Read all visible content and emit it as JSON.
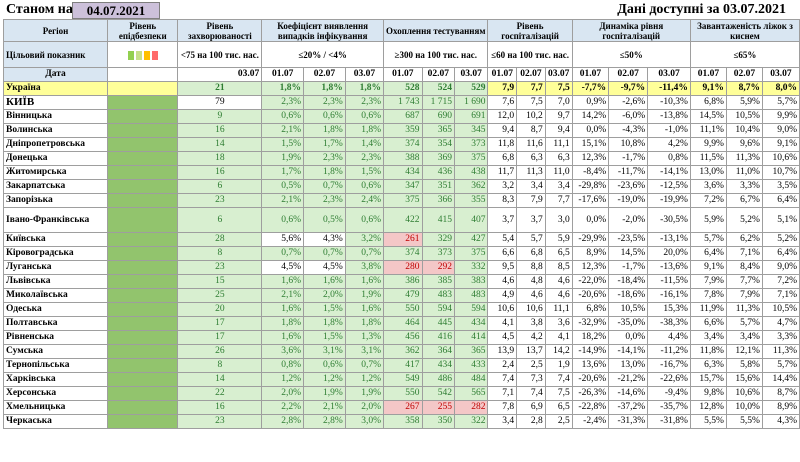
{
  "header": {
    "as_of_label": "Станом на",
    "as_of_date": "04.07.2021",
    "available_label": "Дані доступні за 03.07.2021"
  },
  "columns": {
    "region": "Регіон",
    "epid_level": "Рівень епідбезпеки",
    "incidence": "Рівень захворюваності",
    "detection": "Коефіцієнт виявлення випадків інфікування",
    "testing": "Охоплення тестуванням",
    "hosp_level": "Рівень госпіталізацій",
    "hosp_dynamics": "Динаміка рівня госпіталізацій",
    "oxygen_beds": "Завантаженість ліжок з киснем"
  },
  "targets": {
    "label": "Цільовий показник",
    "incidence": "<75 на 100 тис. нас.",
    "detection": "≤20% / <4%",
    "testing": "≥300 на 100 тис. нас.",
    "hosp_level": "≤60 на 100 тис. нас.",
    "hosp_dynamics": "≤50%",
    "oxygen_beds": "≤65%"
  },
  "level_swatches": [
    "#92d050",
    "#c6e08a",
    "#ffc000",
    "#ff6b6b"
  ],
  "dates": {
    "label": "Дата",
    "incidence": "03.07",
    "d1": "01.07",
    "d2": "02.07",
    "d3": "03.07"
  },
  "rows": [
    {
      "name": "Україна",
      "inc": "21",
      "det": [
        "1,8%",
        "1,8%",
        "1,8%"
      ],
      "tst": [
        "528",
        "524",
        "529"
      ],
      "hl": [
        "7,9",
        "7,7",
        "7,5"
      ],
      "hd": [
        "-7,7%",
        "-9,7%",
        "-11,4%"
      ],
      "ox": [
        "9,1%",
        "8,7%",
        "8,0%"
      ],
      "tc": [
        "g",
        "g",
        "g"
      ],
      "dc": [
        "g",
        "g",
        "g"
      ]
    },
    {
      "name": "КИЇВ",
      "inc": "79",
      "det": [
        "2,3%",
        "2,3%",
        "2,3%"
      ],
      "tst": [
        "1 743",
        "1 715",
        "1 690"
      ],
      "hl": [
        "7,6",
        "7,5",
        "7,0"
      ],
      "hd": [
        "0,9%",
        "-2,6%",
        "-10,3%"
      ],
      "ox": [
        "6,8%",
        "5,9%",
        "5,7%"
      ],
      "tc": [
        "g",
        "g",
        "g"
      ],
      "dc": [
        "g",
        "g",
        "g"
      ],
      "incw": true
    },
    {
      "name": "Вінницька",
      "inc": "9",
      "det": [
        "0,6%",
        "0,6%",
        "0,6%"
      ],
      "tst": [
        "687",
        "690",
        "691"
      ],
      "hl": [
        "12,0",
        "10,2",
        "9,7"
      ],
      "hd": [
        "14,2%",
        "-6,0%",
        "-13,8%"
      ],
      "ox": [
        "14,5%",
        "10,5%",
        "9,9%"
      ],
      "tc": [
        "g",
        "g",
        "g"
      ],
      "dc": [
        "g",
        "g",
        "g"
      ]
    },
    {
      "name": "Волинська",
      "inc": "16",
      "det": [
        "2,1%",
        "1,8%",
        "1,8%"
      ],
      "tst": [
        "359",
        "365",
        "345"
      ],
      "hl": [
        "9,4",
        "8,7",
        "9,4"
      ],
      "hd": [
        "0,0%",
        "-4,3%",
        "-1,0%"
      ],
      "ox": [
        "11,1%",
        "10,4%",
        "9,0%"
      ],
      "tc": [
        "g",
        "g",
        "g"
      ],
      "dc": [
        "g",
        "g",
        "g"
      ]
    },
    {
      "name": "Дніпропетровська",
      "inc": "14",
      "det": [
        "1,5%",
        "1,7%",
        "1,4%"
      ],
      "tst": [
        "374",
        "354",
        "373"
      ],
      "hl": [
        "11,8",
        "11,6",
        "11,1"
      ],
      "hd": [
        "15,1%",
        "10,8%",
        "4,2%"
      ],
      "ox": [
        "9,9%",
        "9,6%",
        "9,1%"
      ],
      "tc": [
        "g",
        "g",
        "g"
      ],
      "dc": [
        "g",
        "g",
        "g"
      ]
    },
    {
      "name": "Донецька",
      "inc": "18",
      "det": [
        "1,9%",
        "2,3%",
        "2,3%"
      ],
      "tst": [
        "388",
        "369",
        "375"
      ],
      "hl": [
        "6,8",
        "6,3",
        "6,3"
      ],
      "hd": [
        "12,3%",
        "-1,7%",
        "0,8%"
      ],
      "ox": [
        "11,5%",
        "11,3%",
        "10,6%"
      ],
      "tc": [
        "g",
        "g",
        "g"
      ],
      "dc": [
        "g",
        "g",
        "g"
      ]
    },
    {
      "name": "Житомирська",
      "inc": "16",
      "det": [
        "1,7%",
        "1,8%",
        "1,5%"
      ],
      "tst": [
        "434",
        "436",
        "438"
      ],
      "hl": [
        "11,7",
        "11,3",
        "11,0"
      ],
      "hd": [
        "-8,4%",
        "-11,7%",
        "-14,1%"
      ],
      "ox": [
        "13,0%",
        "11,0%",
        "10,7%"
      ],
      "tc": [
        "g",
        "g",
        "g"
      ],
      "dc": [
        "g",
        "g",
        "g"
      ]
    },
    {
      "name": "Закарпатська",
      "inc": "6",
      "det": [
        "0,5%",
        "0,7%",
        "0,6%"
      ],
      "tst": [
        "347",
        "351",
        "362"
      ],
      "hl": [
        "3,2",
        "3,4",
        "3,4"
      ],
      "hd": [
        "-29,8%",
        "-23,6%",
        "-12,5%"
      ],
      "ox": [
        "3,6%",
        "3,3%",
        "3,5%"
      ],
      "tc": [
        "g",
        "g",
        "g"
      ],
      "dc": [
        "g",
        "g",
        "g"
      ]
    },
    {
      "name": "Запорізька",
      "inc": "23",
      "det": [
        "2,1%",
        "2,3%",
        "2,4%"
      ],
      "tst": [
        "375",
        "366",
        "355"
      ],
      "hl": [
        "8,3",
        "7,9",
        "7,7"
      ],
      "hd": [
        "-17,6%",
        "-19,0%",
        "-19,9%"
      ],
      "ox": [
        "7,2%",
        "6,7%",
        "6,4%"
      ],
      "tc": [
        "g",
        "g",
        "g"
      ],
      "dc": [
        "g",
        "g",
        "g"
      ]
    },
    {
      "name": "Івано-Франківська",
      "inc": "6",
      "det": [
        "0,6%",
        "0,5%",
        "0,6%"
      ],
      "tst": [
        "422",
        "415",
        "407"
      ],
      "hl": [
        "3,7",
        "3,7",
        "3,0"
      ],
      "hd": [
        "0,0%",
        "-2,0%",
        "-30,5%"
      ],
      "ox": [
        "5,9%",
        "5,2%",
        "5,1%"
      ],
      "tc": [
        "g",
        "g",
        "g"
      ],
      "dc": [
        "g",
        "g",
        "g"
      ],
      "tall": true
    },
    {
      "name": "Київська",
      "inc": "28",
      "det": [
        "5,6%",
        "4,3%",
        "3,2%"
      ],
      "tst": [
        "261",
        "329",
        "427"
      ],
      "hl": [
        "5,4",
        "5,7",
        "5,9"
      ],
      "hd": [
        "-29,9%",
        "-23,5%",
        "-13,1%"
      ],
      "ox": [
        "5,7%",
        "6,2%",
        "5,2%"
      ],
      "tc": [
        "r",
        "g",
        "g"
      ],
      "dc": [
        "w",
        "w",
        "g"
      ]
    },
    {
      "name": "Кіровоградська",
      "inc": "8",
      "det": [
        "0,7%",
        "0,7%",
        "0,7%"
      ],
      "tst": [
        "374",
        "373",
        "375"
      ],
      "hl": [
        "6,6",
        "6,8",
        "6,5"
      ],
      "hd": [
        "8,9%",
        "14,5%",
        "20,0%"
      ],
      "ox": [
        "6,4%",
        "7,1%",
        "6,4%"
      ],
      "tc": [
        "g",
        "g",
        "g"
      ],
      "dc": [
        "g",
        "g",
        "g"
      ]
    },
    {
      "name": "Луганська",
      "inc": "23",
      "det": [
        "4,5%",
        "4,5%",
        "3,8%"
      ],
      "tst": [
        "280",
        "292",
        "332"
      ],
      "hl": [
        "9,5",
        "8,8",
        "8,5"
      ],
      "hd": [
        "12,3%",
        "-1,7%",
        "-13,6%"
      ],
      "ox": [
        "9,1%",
        "8,4%",
        "9,0%"
      ],
      "tc": [
        "r",
        "r",
        "g"
      ],
      "dc": [
        "w",
        "w",
        "g"
      ]
    },
    {
      "name": "Львівська",
      "inc": "15",
      "det": [
        "1,6%",
        "1,6%",
        "1,6%"
      ],
      "tst": [
        "386",
        "385",
        "383"
      ],
      "hl": [
        "4,6",
        "4,8",
        "4,6"
      ],
      "hd": [
        "-22,0%",
        "-18,4%",
        "-11,5%"
      ],
      "ox": [
        "7,9%",
        "7,7%",
        "7,2%"
      ],
      "tc": [
        "g",
        "g",
        "g"
      ],
      "dc": [
        "g",
        "g",
        "g"
      ]
    },
    {
      "name": "Миколаївська",
      "inc": "25",
      "det": [
        "2,1%",
        "2,0%",
        "1,9%"
      ],
      "tst": [
        "479",
        "483",
        "483"
      ],
      "hl": [
        "4,9",
        "4,6",
        "4,6"
      ],
      "hd": [
        "-20,6%",
        "-18,6%",
        "-16,1%"
      ],
      "ox": [
        "7,8%",
        "7,9%",
        "7,1%"
      ],
      "tc": [
        "g",
        "g",
        "g"
      ],
      "dc": [
        "g",
        "g",
        "g"
      ]
    },
    {
      "name": "Одеська",
      "inc": "20",
      "det": [
        "1,6%",
        "1,5%",
        "1,6%"
      ],
      "tst": [
        "550",
        "594",
        "594"
      ],
      "hl": [
        "10,6",
        "10,6",
        "11,1"
      ],
      "hd": [
        "6,8%",
        "10,5%",
        "15,3%"
      ],
      "ox": [
        "11,9%",
        "11,3%",
        "10,5%"
      ],
      "tc": [
        "g",
        "g",
        "g"
      ],
      "dc": [
        "g",
        "g",
        "g"
      ]
    },
    {
      "name": "Полтавська",
      "inc": "17",
      "det": [
        "1,8%",
        "1,8%",
        "1,8%"
      ],
      "tst": [
        "464",
        "445",
        "434"
      ],
      "hl": [
        "4,1",
        "3,8",
        "3,6"
      ],
      "hd": [
        "-32,9%",
        "-35,0%",
        "-38,3%"
      ],
      "ox": [
        "6,6%",
        "5,7%",
        "4,7%"
      ],
      "tc": [
        "g",
        "g",
        "g"
      ],
      "dc": [
        "g",
        "g",
        "g"
      ]
    },
    {
      "name": "Рівненська",
      "inc": "17",
      "det": [
        "1,6%",
        "1,5%",
        "1,3%"
      ],
      "tst": [
        "456",
        "416",
        "414"
      ],
      "hl": [
        "4,5",
        "4,2",
        "4,1"
      ],
      "hd": [
        "18,2%",
        "0,0%",
        "4,4%"
      ],
      "ox": [
        "3,4%",
        "3,4%",
        "3,3%"
      ],
      "tc": [
        "g",
        "g",
        "g"
      ],
      "dc": [
        "g",
        "g",
        "g"
      ]
    },
    {
      "name": "Сумська",
      "inc": "26",
      "det": [
        "3,6%",
        "3,1%",
        "3,1%"
      ],
      "tst": [
        "362",
        "364",
        "365"
      ],
      "hl": [
        "13,9",
        "13,7",
        "14,2"
      ],
      "hd": [
        "-14,9%",
        "-14,1%",
        "-11,2%"
      ],
      "ox": [
        "11,8%",
        "12,1%",
        "11,3%"
      ],
      "tc": [
        "g",
        "g",
        "g"
      ],
      "dc": [
        "g",
        "g",
        "g"
      ]
    },
    {
      "name": "Тернопільська",
      "inc": "8",
      "det": [
        "0,8%",
        "0,6%",
        "0,7%"
      ],
      "tst": [
        "417",
        "434",
        "433"
      ],
      "hl": [
        "2,4",
        "2,5",
        "1,9"
      ],
      "hd": [
        "13,6%",
        "13,0%",
        "-16,7%"
      ],
      "ox": [
        "6,3%",
        "5,8%",
        "5,7%"
      ],
      "tc": [
        "g",
        "g",
        "g"
      ],
      "dc": [
        "g",
        "g",
        "g"
      ]
    },
    {
      "name": "Харківська",
      "inc": "14",
      "det": [
        "1,2%",
        "1,2%",
        "1,2%"
      ],
      "tst": [
        "549",
        "486",
        "484"
      ],
      "hl": [
        "7,4",
        "7,3",
        "7,4"
      ],
      "hd": [
        "-20,6%",
        "-21,2%",
        "-22,6%"
      ],
      "ox": [
        "15,7%",
        "15,6%",
        "14,4%"
      ],
      "tc": [
        "g",
        "g",
        "g"
      ],
      "dc": [
        "g",
        "g",
        "g"
      ]
    },
    {
      "name": "Херсонська",
      "inc": "22",
      "det": [
        "2,0%",
        "1,9%",
        "1,9%"
      ],
      "tst": [
        "550",
        "542",
        "565"
      ],
      "hl": [
        "7,1",
        "7,4",
        "7,5"
      ],
      "hd": [
        "-26,3%",
        "-14,6%",
        "-9,4%"
      ],
      "ox": [
        "9,8%",
        "10,6%",
        "8,7%"
      ],
      "tc": [
        "g",
        "g",
        "g"
      ],
      "dc": [
        "g",
        "g",
        "g"
      ]
    },
    {
      "name": "Хмельницька",
      "inc": "16",
      "det": [
        "2,2%",
        "2,1%",
        "2,0%"
      ],
      "tst": [
        "267",
        "255",
        "282"
      ],
      "hl": [
        "7,8",
        "6,9",
        "6,5"
      ],
      "hd": [
        "-22,8%",
        "-37,2%",
        "-35,7%"
      ],
      "ox": [
        "12,8%",
        "10,0%",
        "8,9%"
      ],
      "tc": [
        "r",
        "r",
        "r"
      ],
      "dc": [
        "g",
        "g",
        "g"
      ]
    },
    {
      "name": "Черкаська",
      "inc": "23",
      "det": [
        "2,8%",
        "2,8%",
        "3,0%"
      ],
      "tst": [
        "358",
        "350",
        "322"
      ],
      "hl": [
        "3,4",
        "2,8",
        "2,5"
      ],
      "hd": [
        "-2,4%",
        "-31,3%",
        "-31,8%"
      ],
      "ox": [
        "5,5%",
        "5,5%",
        "4,3%"
      ],
      "tc": [
        "g",
        "g",
        "g"
      ],
      "dc": [
        "g",
        "g",
        "g"
      ]
    }
  ]
}
